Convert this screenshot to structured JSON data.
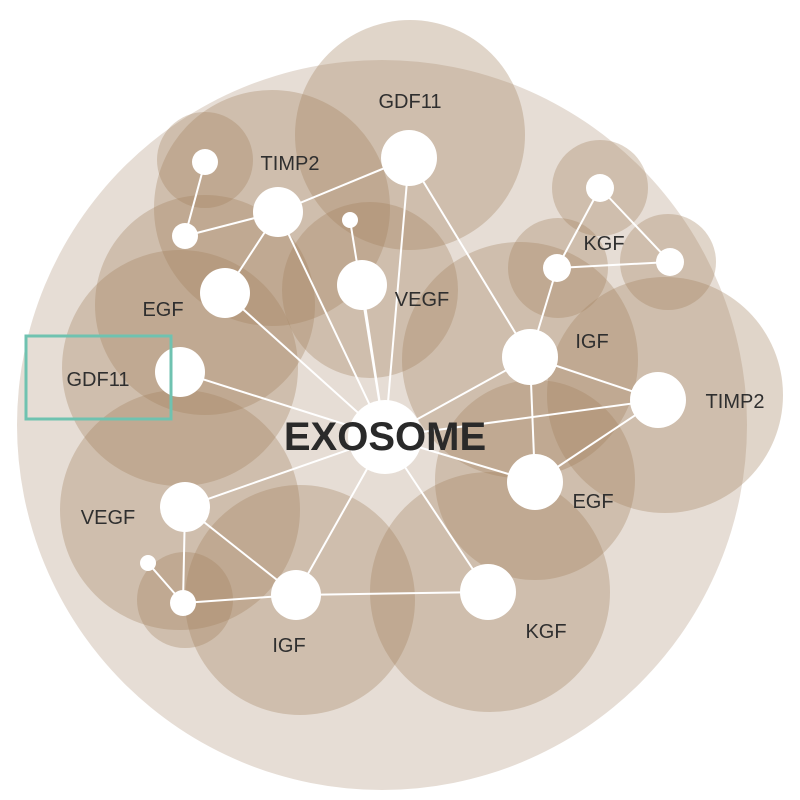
{
  "diagram": {
    "center": {
      "id": "exosome",
      "label": "EXOSOME"
    },
    "nodes": [
      {
        "id": "gdf11-top",
        "label": "GDF11"
      },
      {
        "id": "timp2-top",
        "label": "TIMP2"
      },
      {
        "id": "egf-left",
        "label": "EGF"
      },
      {
        "id": "vegf-mid",
        "label": "VEGF"
      },
      {
        "id": "gdf11-left",
        "label": "GDF11"
      },
      {
        "id": "kgf-top",
        "label": "KGF"
      },
      {
        "id": "igf-right",
        "label": "IGF"
      },
      {
        "id": "timp2-right",
        "label": "TIMP2"
      },
      {
        "id": "egf-right",
        "label": "EGF"
      },
      {
        "id": "vegf-left",
        "label": "VEGF"
      },
      {
        "id": "igf-bottom",
        "label": "IGF"
      },
      {
        "id": "kgf-bottom",
        "label": "KGF"
      }
    ],
    "highlighted_node": "gdf11-left",
    "colors": {
      "background_circle": "#e6ddd5",
      "bubble": "#a07e5a",
      "node": "#ffffff",
      "edge": "#ffffff",
      "highlight": "#6fc2b0"
    }
  }
}
